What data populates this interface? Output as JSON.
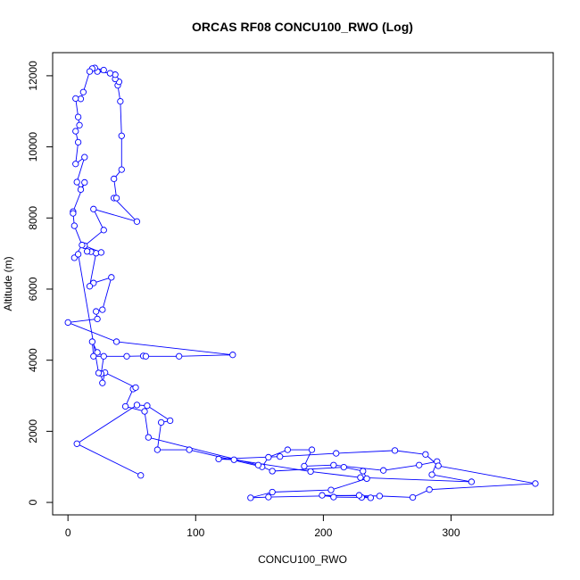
{
  "chart_data": {
    "type": "line",
    "title": "ORCAS RF08 CONCU100_RWO (Log)",
    "xlabel": "CONCU100_RWO",
    "ylabel": "Altitude (m)",
    "xlim": [
      -12,
      380
    ],
    "ylim": [
      -350,
      12650
    ],
    "x_ticks": [
      0,
      100,
      200,
      300
    ],
    "y_ticks": [
      0,
      2000,
      4000,
      6000,
      8000,
      10000,
      12000
    ],
    "grid": false,
    "series": [
      {
        "color": "#0000ff",
        "marker": "open-circle",
        "points": [
          [
            57,
            760
          ],
          [
            7,
            1650
          ],
          [
            54,
            2740
          ],
          [
            62,
            2720
          ],
          [
            80,
            2300
          ],
          [
            73,
            2250
          ],
          [
            70,
            1480
          ],
          [
            95,
            1480
          ],
          [
            152,
            1000
          ],
          [
            157,
            1270
          ],
          [
            172,
            1480
          ],
          [
            191,
            1480
          ],
          [
            185,
            1020
          ],
          [
            208,
            1050
          ],
          [
            247,
            900
          ],
          [
            275,
            1050
          ],
          [
            289,
            1150
          ],
          [
            285,
            780
          ],
          [
            316,
            580
          ],
          [
            229,
            700
          ],
          [
            190,
            870
          ],
          [
            130,
            1200
          ],
          [
            118,
            1220
          ],
          [
            166,
            1290
          ],
          [
            210,
            1380
          ],
          [
            256,
            1460
          ],
          [
            280,
            1350
          ],
          [
            290,
            1030
          ],
          [
            366,
            530
          ],
          [
            283,
            360
          ],
          [
            270,
            140
          ],
          [
            244,
            180
          ],
          [
            199,
            200
          ],
          [
            208,
            150
          ],
          [
            230,
            140
          ],
          [
            237,
            130
          ],
          [
            228,
            200
          ],
          [
            157,
            150
          ],
          [
            143,
            130
          ],
          [
            160,
            290
          ],
          [
            206,
            350
          ],
          [
            234,
            670
          ],
          [
            231,
            880
          ],
          [
            216,
            990
          ],
          [
            160,
            880
          ],
          [
            149,
            1050
          ],
          [
            63,
            1830
          ],
          [
            60,
            2560
          ],
          [
            45,
            2700
          ],
          [
            51,
            3190
          ],
          [
            53,
            3230
          ],
          [
            29,
            3650
          ],
          [
            27,
            3360
          ],
          [
            26,
            3620
          ],
          [
            28,
            4110
          ],
          [
            23,
            4220
          ],
          [
            19,
            4520
          ],
          [
            20,
            4110
          ],
          [
            46,
            4110
          ],
          [
            59,
            4120
          ],
          [
            61,
            4110
          ],
          [
            87,
            4110
          ],
          [
            129,
            4150
          ],
          [
            38,
            4520
          ],
          [
            0,
            5060
          ],
          [
            23,
            5160
          ],
          [
            22,
            5370
          ],
          [
            27,
            5420
          ],
          [
            34,
            6330
          ],
          [
            20,
            6170
          ],
          [
            17,
            6080
          ],
          [
            22,
            7010
          ],
          [
            18,
            7050
          ],
          [
            15,
            7060
          ],
          [
            26,
            7030
          ],
          [
            13,
            7220
          ],
          [
            28,
            7660
          ],
          [
            20,
            8250
          ],
          [
            54,
            7900
          ],
          [
            36,
            8560
          ],
          [
            38,
            8560
          ],
          [
            36,
            9100
          ],
          [
            42,
            9360
          ],
          [
            42,
            10310
          ],
          [
            41,
            11280
          ],
          [
            39,
            11730
          ],
          [
            40,
            11830
          ],
          [
            37,
            11910
          ],
          [
            37,
            12030
          ],
          [
            33,
            12070
          ],
          [
            23,
            12120
          ],
          [
            28,
            12160
          ],
          [
            21,
            12220
          ],
          [
            19,
            12200
          ],
          [
            17,
            12120
          ],
          [
            12,
            11540
          ],
          [
            10,
            11350
          ],
          [
            6,
            11360
          ],
          [
            8,
            10840
          ],
          [
            9,
            10610
          ],
          [
            6,
            10440
          ],
          [
            8,
            10130
          ],
          [
            6,
            9520
          ],
          [
            13,
            9710
          ],
          [
            7,
            9010
          ],
          [
            10,
            8800
          ],
          [
            13,
            9000
          ],
          [
            4,
            8180
          ],
          [
            4,
            8130
          ],
          [
            5,
            7780
          ],
          [
            11,
            7240
          ],
          [
            5,
            6880
          ],
          [
            8,
            6980
          ],
          [
            24,
            3640
          ]
        ]
      }
    ]
  }
}
